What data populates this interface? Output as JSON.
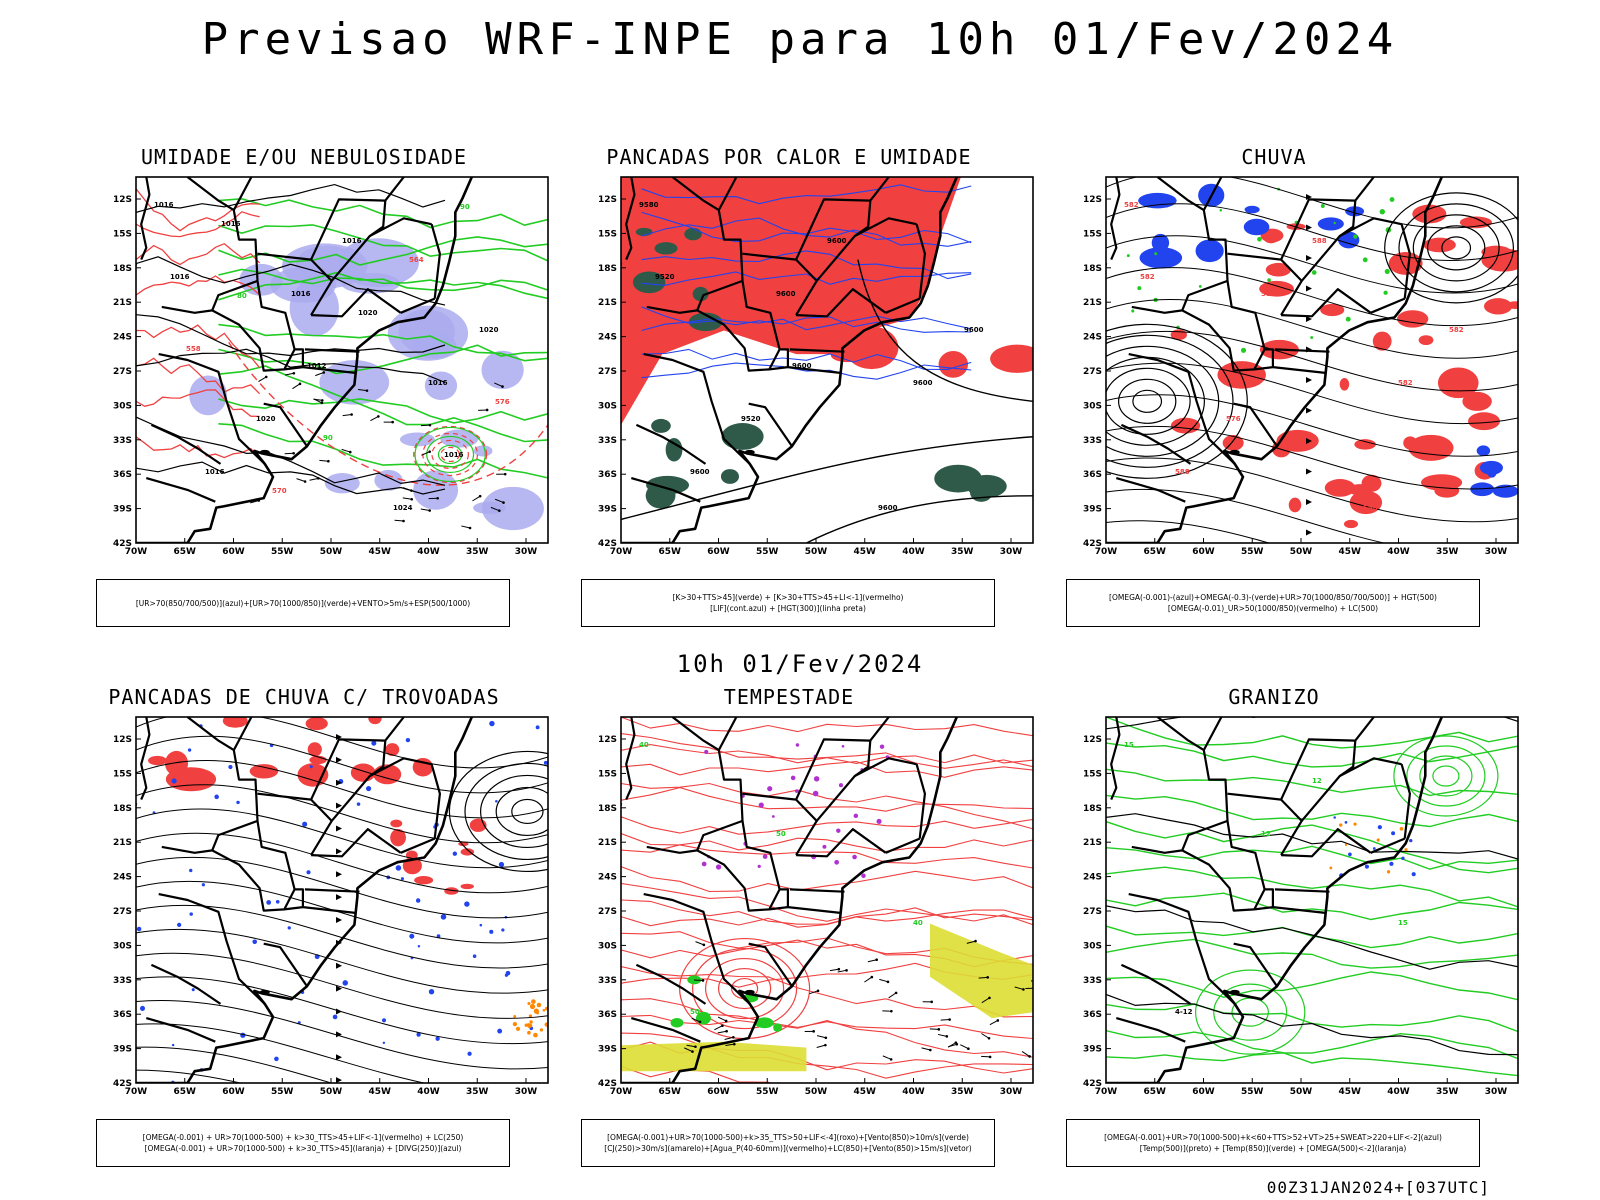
{
  "header": {
    "title": "Previsao WRF-INPE  para 10h 01/Fev/2024",
    "mid_time": "10h 01/Fev/2024",
    "footer": "00Z31JAN2024+[037UTC]"
  },
  "colors": {
    "frame": "#000000",
    "red": "#f04040",
    "green": "#22cc22",
    "blue": "#2244ee",
    "lavender": "#aaaaee",
    "darkgreen": "#2f5a4a",
    "yellow": "#dddd33",
    "purple": "#b030d0",
    "orange": "#ff8800"
  },
  "chart_data": [
    {
      "type": "map",
      "title": "UMIDADE E/OU NEBULOSIDADE",
      "lon_ticks": [
        "70W",
        "65W",
        "60W",
        "55W",
        "50W",
        "45W",
        "40W",
        "35W",
        "30W"
      ],
      "lat_ticks": [
        "12S",
        "15S",
        "18S",
        "21S",
        "24S",
        "27S",
        "30S",
        "33S",
        "36S",
        "39S",
        "42S"
      ],
      "contour_labels": [
        "1016",
        "1016",
        "1016",
        "1016",
        "1016",
        "1020",
        "1020",
        "1024",
        "1016",
        "1012",
        "1016",
        "1016",
        "1020",
        "576",
        "570",
        "564",
        "558",
        "90",
        "90",
        "80"
      ],
      "legend": [
        "[UR>70(850/700/500)](azul)+[UR>70(1000/850)](verde)+VENTO>5m/s+ESP(500/1000)"
      ]
    },
    {
      "type": "map",
      "title": "PANCADAS POR CALOR E UMIDADE",
      "lon_ticks": [
        "70W",
        "65W",
        "60W",
        "55W",
        "50W",
        "45W",
        "40W",
        "35W",
        "30W"
      ],
      "lat_ticks": [
        "12S",
        "15S",
        "18S",
        "21S",
        "24S",
        "27S",
        "30S",
        "33S",
        "36S",
        "39S",
        "42S"
      ],
      "contour_labels": [
        "9580",
        "9600",
        "9600",
        "9600",
        "9600",
        "9600",
        "9520",
        "9600",
        "9520",
        "9600"
      ],
      "legend": [
        "[K>30+TTS>45](verde) + [K>30+TTS>45+LI<-1](vermelho)",
        "[LIF](cont.azul) + [HGT(300)](linha preta)"
      ]
    },
    {
      "type": "map",
      "title": "CHUVA",
      "lon_ticks": [
        "70W",
        "65W",
        "60W",
        "55W",
        "50W",
        "45W",
        "40W",
        "35W",
        "30W"
      ],
      "lat_ticks": [
        "12S",
        "15S",
        "18S",
        "21S",
        "24S",
        "27S",
        "30S",
        "33S",
        "36S",
        "39S",
        "42S"
      ],
      "contour_labels": [
        "582",
        "588",
        "582",
        "588",
        "588",
        "582",
        "576",
        "558",
        "582"
      ],
      "legend": [
        "[OMEGA(-0.001)-(azul)+OMEGA(-0.3)-(verde)+UR>70(1000/850/700/500)] + HGT(500)",
        "[OMEGA(-0.01)_UR>50(1000/850)(vermelho) + LC(500)"
      ]
    },
    {
      "type": "map",
      "title": "PANCADAS DE CHUVA C/ TROVOADAS",
      "lon_ticks": [
        "70W",
        "65W",
        "60W",
        "55W",
        "50W",
        "45W",
        "40W",
        "35W",
        "30W"
      ],
      "lat_ticks": [
        "12S",
        "15S",
        "18S",
        "21S",
        "24S",
        "27S",
        "30S",
        "33S",
        "36S",
        "39S",
        "42S"
      ],
      "contour_labels": [],
      "legend": [
        "[OMEGA(-0.001) + UR>70(1000-500) + k>30_TTS>45+LIF<-1](vermelho) + LC(250)",
        "[OMEGA(-0.001) + UR>70(1000-500) + k>30_TTS>45](laranja) + [DIVG(250)](azul)"
      ]
    },
    {
      "type": "map",
      "title": "TEMPESTADE",
      "lon_ticks": [
        "70W",
        "65W",
        "60W",
        "55W",
        "50W",
        "45W",
        "40W",
        "35W",
        "30W"
      ],
      "lat_ticks": [
        "12S",
        "15S",
        "18S",
        "21S",
        "24S",
        "27S",
        "30S",
        "33S",
        "36S",
        "39S",
        "42S"
      ],
      "contour_labels": [
        "40",
        "50",
        "40",
        "50"
      ],
      "legend": [
        "[OMEGA(-0.001)+UR>70(1000-500)+k>35_TTS>50+LIF<-4](roxo)+[Vento(850)>10m/s](verde)",
        "[CJ(250)>30m/s](amarelo)+[Agua_P(40-60mm)](vermelho)+LC(850)+[Vento(850)>15m/s](vetor)"
      ]
    },
    {
      "type": "map",
      "title": "GRANIZO",
      "lon_ticks": [
        "70W",
        "65W",
        "60W",
        "55W",
        "50W",
        "45W",
        "40W",
        "35W",
        "30W"
      ],
      "lat_ticks": [
        "12S",
        "15S",
        "18S",
        "21S",
        "24S",
        "27S",
        "30S",
        "33S",
        "36S",
        "39S",
        "42S"
      ],
      "contour_labels": [
        "15",
        "12",
        "15",
        "4-12",
        "12"
      ],
      "legend": [
        "[OMEGA(-0.001)+UR>70(1000-500)+k<60+TTS>52+VT>25+SWEAT>220+LIF<-2](azul)",
        "[Temp(500)](preto) + [Temp(850)](verde) + [OMEGA(500)<-2](laranja)"
      ]
    }
  ]
}
